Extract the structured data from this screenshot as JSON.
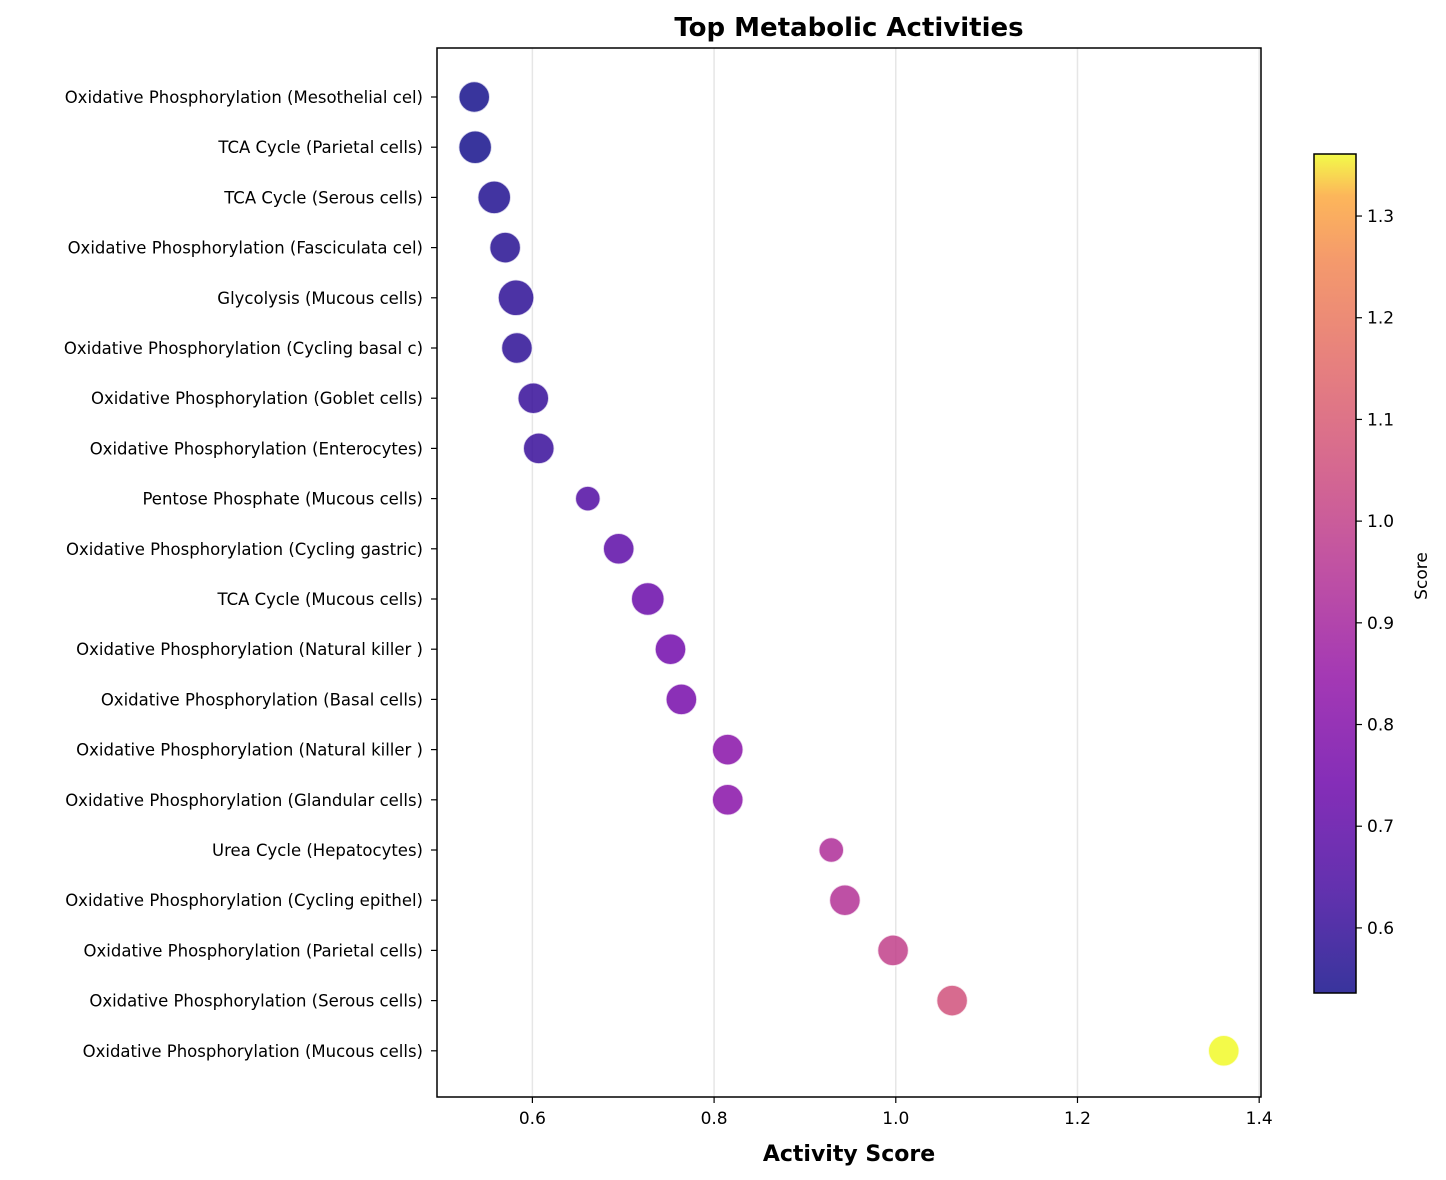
{
  "chart_data": {
    "type": "scatter",
    "title": "Top Metabolic Activities",
    "xlabel": "Activity Score",
    "ylabel": "",
    "xlim": [
      0.495,
      1.402
    ],
    "xticks": [
      "0.6",
      "0.8",
      "1.0",
      "1.2",
      "1.4"
    ],
    "xtick_values": [
      0.6,
      0.8,
      1.0,
      1.2,
      1.4
    ],
    "grid": "vertical",
    "colormap": "plasma",
    "colorbar": {
      "label": "Score",
      "range": [
        0.536,
        1.361
      ],
      "ticks": [
        "0.6",
        "0.7",
        "0.8",
        "0.9",
        "1.0",
        "1.1",
        "1.2",
        "1.3"
      ],
      "tick_values": [
        0.6,
        0.7,
        0.8,
        0.9,
        1.0,
        1.1,
        1.2,
        1.3
      ]
    },
    "categories": [
      "Oxidative Phosphorylation (Mesothelial cel)",
      "TCA Cycle (Parietal cells)",
      "TCA Cycle (Serous cells)",
      "Oxidative Phosphorylation (Fasciculata cel)",
      "Glycolysis (Mucous cells)",
      "Oxidative Phosphorylation (Cycling basal c)",
      "Oxidative Phosphorylation (Goblet cells)",
      "Oxidative Phosphorylation (Enterocytes)",
      "Pentose Phosphate (Mucous cells)",
      "Oxidative Phosphorylation (Cycling gastric)",
      "TCA Cycle (Mucous cells)",
      "Oxidative Phosphorylation (Natural killer )",
      "Oxidative Phosphorylation (Basal cells)",
      "Oxidative Phosphorylation (Natural killer )",
      "Oxidative Phosphorylation (Glandular cells)",
      "Urea Cycle (Hepatocytes)",
      "Oxidative Phosphorylation (Cycling epithel)",
      "Oxidative Phosphorylation (Parietal cells)",
      "Oxidative Phosphorylation (Serous cells)",
      "Oxidative Phosphorylation (Mucous cells)"
    ],
    "values": [
      0.536,
      0.537,
      0.558,
      0.57,
      0.582,
      0.583,
      0.601,
      0.607,
      0.661,
      0.695,
      0.727,
      0.752,
      0.764,
      0.815,
      0.815,
      0.929,
      0.944,
      0.997,
      1.062,
      1.361
    ],
    "size_weights": [
      0.55,
      0.65,
      0.65,
      0.55,
      0.8,
      0.55,
      0.55,
      0.55,
      0.25,
      0.55,
      0.65,
      0.55,
      0.55,
      0.55,
      0.55,
      0.25,
      0.55,
      0.55,
      0.55,
      0.55
    ]
  }
}
